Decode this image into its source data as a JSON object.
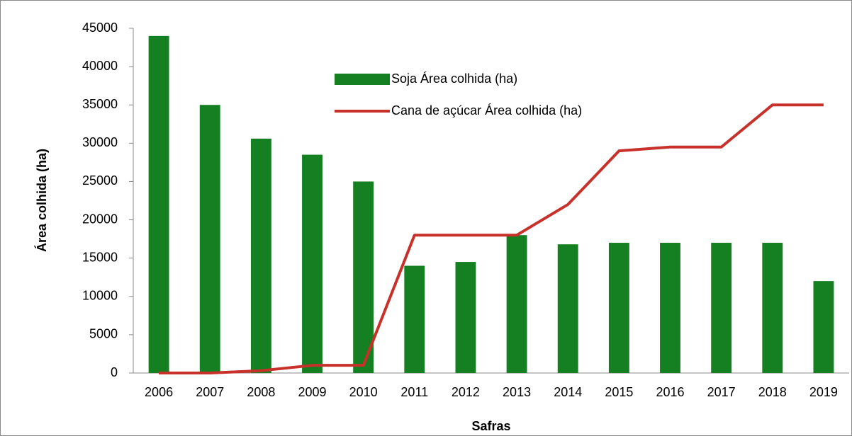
{
  "chart_data": {
    "type": "bar",
    "xlabel": "Safras",
    "ylabel": "Área colhida (ha)",
    "categories": [
      "2006",
      "2007",
      "2008",
      "2009",
      "2010",
      "2011",
      "2012",
      "2013",
      "2014",
      "2015",
      "2016",
      "2017",
      "2018",
      "2019"
    ],
    "series": [
      {
        "name": "Soja Área colhida (ha)",
        "type": "bar",
        "color": "#158022",
        "values": [
          44000,
          35000,
          30600,
          28500,
          25000,
          14000,
          14500,
          18000,
          16800,
          17000,
          17000,
          17000,
          17000,
          12000
        ]
      },
      {
        "name": "Cana de açúcar Área colhida (ha)",
        "type": "line",
        "color": "#c8302a",
        "values": [
          0,
          0,
          300,
          1000,
          1000,
          18000,
          18000,
          18000,
          22000,
          29000,
          29500,
          29500,
          35000,
          35000
        ]
      }
    ],
    "ylim": [
      0,
      45000
    ],
    "yticks": [
      0,
      5000,
      10000,
      15000,
      20000,
      25000,
      30000,
      35000,
      40000,
      45000
    ],
    "grid": false
  }
}
